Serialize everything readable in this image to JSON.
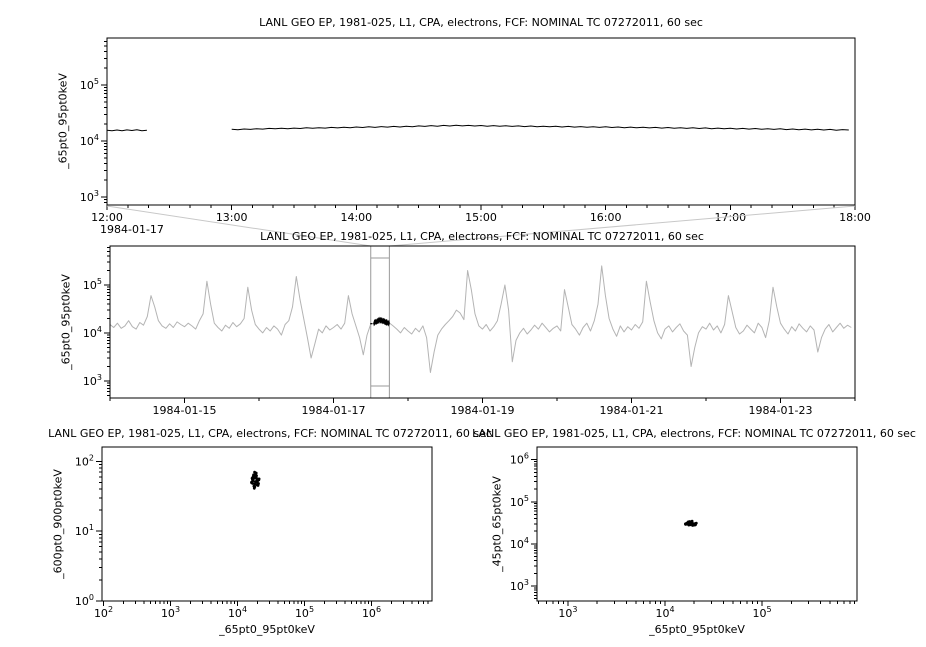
{
  "colors": {
    "foreground": "#000000",
    "overview_series": "#b4b4b4",
    "zoom_box": "#999999",
    "connector": "#c8c8c8"
  },
  "chart_data": [
    {
      "type": "line",
      "title": "LANL GEO EP, 1981-025, L1, CPA, electrons, FCF: NOMINAL TC 07272011, 60 sec",
      "ylabel": "_65pt0_95pt0keV",
      "context_date": "1984-01-17",
      "xlim": [
        12,
        18
      ],
      "ylim": [
        720,
        690000
      ],
      "y_log": true,
      "x_minor_step": 0.1666667,
      "x_ticks": [
        {
          "v": 12,
          "label": "12:00"
        },
        {
          "v": 13,
          "label": "13:00"
        },
        {
          "v": 14,
          "label": "14:00"
        },
        {
          "v": 15,
          "label": "15:00"
        },
        {
          "v": 16,
          "label": "16:00"
        },
        {
          "v": 17,
          "label": "17:00"
        },
        {
          "v": 18,
          "label": "18:00"
        }
      ],
      "series": [
        {
          "name": "_65pt0_95pt0keV",
          "color": "#000000",
          "segments": [
            {
              "x_start": 12.0,
              "x_step": 0.04,
              "values": [
                15600,
                15300,
                15700,
                15200,
                15800,
                15400,
                15900,
                15300,
                15600
              ]
            },
            {
              "x_start": 13.0,
              "x_step": 0.05,
              "values": [
                16200,
                15900,
                16400,
                16100,
                16600,
                16300,
                16800,
                16500,
                16900,
                16600,
                17000,
                16700,
                17200,
                16900,
                17300,
                17000,
                17500,
                17100,
                17600,
                17200,
                17800,
                17400,
                17900,
                17500,
                18100,
                17700,
                18200,
                17800,
                18400,
                18000,
                18600,
                18200,
                18800,
                18300,
                19000,
                18500,
                19100,
                18600,
                19000,
                18500,
                18900,
                18400,
                18800,
                18300,
                18700,
                18200,
                18600,
                18100,
                18500,
                18000,
                18400,
                17900,
                18300,
                17800,
                18200,
                17700,
                18100,
                17600,
                18000,
                17500,
                17900,
                17400,
                17800,
                17300,
                17700,
                17200,
                17600,
                17100,
                17500,
                17000,
                17400,
                16900,
                17300,
                16800,
                17200,
                16700,
                17100,
                16600,
                17000,
                16500,
                16900,
                16400,
                16800,
                16300,
                16700,
                16200,
                16600,
                16100,
                16500,
                16000,
                16400,
                15900,
                16300,
                15800,
                16200,
                15700,
                16100,
                15600,
                16000,
                15700
              ]
            }
          ]
        }
      ]
    },
    {
      "type": "line",
      "title": "LANL GEO EP, 1981-025, L1, CPA, electrons, FCF: NOMINAL TC 07272011, 60 sec",
      "ylabel": "_65pt0_95pt0keV",
      "xlim": [
        14,
        24
      ],
      "ylim": [
        440,
        650000
      ],
      "y_log": true,
      "x_minor_step": 1,
      "x_ticks": [
        {
          "v": 15,
          "label": "1984-01-15"
        },
        {
          "v": 17,
          "label": "1984-01-17"
        },
        {
          "v": 19,
          "label": "1984-01-19"
        },
        {
          "v": 21,
          "label": "1984-01-21"
        },
        {
          "v": 23,
          "label": "1984-01-23"
        }
      ],
      "zoom_box": {
        "x0": 17.5,
        "x1": 17.75
      },
      "series": [
        {
          "name": "overview _65pt0_95pt0keV",
          "color": "#b4b4b4",
          "segments": [
            {
              "x_start": 14.0,
              "x_step": 0.05,
              "values": [
                15000,
                13000,
                16000,
                12500,
                14000,
                18000,
                13500,
                12000,
                16500,
                14500,
                22000,
                60000,
                35000,
                18000,
                14000,
                12500,
                15500,
                13000,
                17000,
                15000,
                13500,
                16000,
                14000,
                12000,
                18000,
                25000,
                120000,
                40000,
                16000,
                13000,
                11000,
                14500,
                12500,
                16500,
                13500,
                15500,
                20000,
                90000,
                30000,
                15000,
                12000,
                10000,
                13000,
                11000,
                14000,
                12000,
                9000,
                15000,
                18000,
                35000,
                150000,
                50000,
                20000,
                8000,
                3000,
                6000,
                12000,
                10000,
                14000,
                11500,
                13000,
                15000,
                12000,
                16000,
                60000,
                25000,
                14000,
                8000,
                3500,
                9000,
                15500,
                16000,
                15800,
                16200,
                15900,
                16100,
                14000,
                12000,
                10000,
                13000,
                11000,
                9500,
                12500,
                10500,
                14000,
                8000,
                1500,
                4000,
                9000,
                12000,
                15000,
                18000,
                22000,
                30000,
                26000,
                19000,
                200000,
                80000,
                25000,
                14000,
                12000,
                15000,
                11000,
                13500,
                18000,
                40000,
                100000,
                30000,
                2500,
                7000,
                10000,
                12500,
                9500,
                11500,
                14500,
                12000,
                16000,
                13000,
                10500,
                12500,
                14000,
                11000,
                80000,
                35000,
                15000,
                12000,
                9000,
                13000,
                16000,
                11000,
                18000,
                40000,
                250000,
                60000,
                20000,
                12000,
                8500,
                14000,
                10500,
                13500,
                11500,
                15000,
                12500,
                17000,
                120000,
                45000,
                18000,
                10000,
                7500,
                12000,
                14000,
                10500,
                13000,
                15500,
                11000,
                9000,
                2000,
                5000,
                10000,
                13500,
                12000,
                16000,
                11500,
                14000,
                10000,
                15000,
                60000,
                28000,
                13000,
                9500,
                11000,
                14500,
                12000,
                10000,
                16000,
                13000,
                8000,
                18000,
                90000,
                35000,
                16000,
                12000,
                9500,
                13500,
                11000,
                15500,
                12500,
                10500,
                14000,
                11500,
                4000,
                8000,
                12000,
                15000,
                10500,
                13000,
                16000,
                12500,
                14500,
                13000
              ]
            }
          ]
        }
      ]
    },
    {
      "type": "scatter",
      "title": "LANL GEO EP, 1981-025, L1, CPA, electrons, FCF: NOMINAL TC 07272011, 60 sec",
      "ylabel": "_600pt0_900pt0keV",
      "xlabel": "_65pt0_95pt0keV",
      "x_log": true,
      "y_log": true,
      "xlim": [
        95,
        8000000
      ],
      "ylim": [
        1,
        160
      ],
      "points": [
        [
          16800,
          52
        ],
        [
          19000,
          58
        ],
        [
          18200,
          47
        ],
        [
          17200,
          61
        ],
        [
          20000,
          55
        ],
        [
          17600,
          44
        ],
        [
          18800,
          66
        ],
        [
          19600,
          50
        ],
        [
          16500,
          57
        ],
        [
          18000,
          70
        ],
        [
          20600,
          48
        ],
        [
          17000,
          53
        ],
        [
          19200,
          62
        ],
        [
          17800,
          41
        ],
        [
          19800,
          56
        ],
        [
          16300,
          49
        ],
        [
          18600,
          59
        ],
        [
          20200,
          45
        ],
        [
          17400,
          64
        ],
        [
          18400,
          51
        ],
        [
          20800,
          54
        ],
        [
          17100,
          60
        ],
        [
          19400,
          46
        ],
        [
          16700,
          55
        ],
        [
          19000,
          68
        ],
        [
          18100,
          43
        ],
        [
          17700,
          57
        ],
        [
          19900,
          52
        ],
        [
          18900,
          61
        ],
        [
          16900,
          48
        ],
        [
          21000,
          56
        ],
        [
          16200,
          50
        ],
        [
          19500,
          54
        ],
        [
          18300,
          58
        ],
        [
          20400,
          47
        ],
        [
          18700,
          63
        ]
      ]
    },
    {
      "type": "scatter",
      "title": "LANL GEO EP, 1981-025, L1, CPA, electrons, FCF: NOMINAL TC 07272011, 60 sec",
      "ylabel": "_45pt0_65pt0keV",
      "xlabel": "_65pt0_95pt0keV",
      "x_log": true,
      "y_log": true,
      "xlim": [
        480,
        950000
      ],
      "ylim": [
        440,
        2000000
      ],
      "points": [
        [
          16800,
          29500
        ],
        [
          19000,
          31000
        ],
        [
          18200,
          28500
        ],
        [
          17200,
          32000
        ],
        [
          20000,
          30000
        ],
        [
          17600,
          28000
        ],
        [
          18800,
          33000
        ],
        [
          19600,
          29500
        ],
        [
          16500,
          30500
        ],
        [
          18000,
          34000
        ],
        [
          20600,
          28500
        ],
        [
          17000,
          31500
        ],
        [
          19200,
          27500
        ],
        [
          17800,
          32500
        ],
        [
          19800,
          30000
        ],
        [
          16300,
          29000
        ],
        [
          18600,
          31000
        ],
        [
          20200,
          28000
        ],
        [
          17400,
          33500
        ],
        [
          18400,
          29500
        ],
        [
          20800,
          30500
        ],
        [
          17100,
          32000
        ],
        [
          19400,
          27800
        ],
        [
          16700,
          30000
        ],
        [
          19000,
          34500
        ],
        [
          18100,
          28800
        ],
        [
          17700,
          31500
        ],
        [
          19900,
          29200
        ],
        [
          18900,
          32500
        ],
        [
          16900,
          30800
        ],
        [
          21000,
          31200
        ],
        [
          16200,
          29800
        ],
        [
          19500,
          28200
        ],
        [
          18300,
          33200
        ],
        [
          20400,
          30200
        ],
        [
          18700,
          31800
        ]
      ]
    }
  ]
}
